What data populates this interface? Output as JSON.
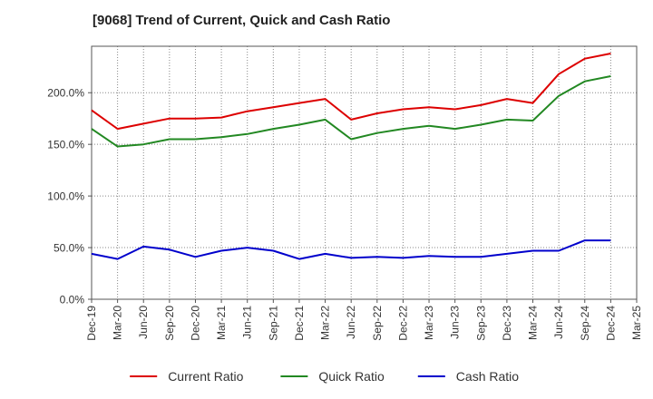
{
  "chart_data": {
    "type": "line",
    "title": "[9068]  Trend of Current, Quick and Cash Ratio",
    "xlabel": "",
    "ylabel": "",
    "ylim": [
      0,
      245
    ],
    "y_ticks": [
      0,
      50,
      100,
      150,
      200
    ],
    "y_tick_labels": [
      "0.0%",
      "50.0%",
      "100.0%",
      "150.0%",
      "200.0%"
    ],
    "x_tick_labels": [
      "Dec-19",
      "Mar-20",
      "Jun-20",
      "Sep-20",
      "Dec-20",
      "Mar-21",
      "Jun-21",
      "Sep-21",
      "Dec-21",
      "Mar-22",
      "Jun-22",
      "Sep-22",
      "Dec-22",
      "Mar-23",
      "Jun-23",
      "Sep-23",
      "Dec-23",
      "Mar-24",
      "Jun-24",
      "Sep-24",
      "Dec-24",
      "Mar-25"
    ],
    "categories": [
      "Dec-19",
      "Mar-20",
      "Jun-20",
      "Sep-20",
      "Dec-20",
      "Mar-21",
      "Jun-21",
      "Sep-21",
      "Dec-21",
      "Mar-22",
      "Jun-22",
      "Sep-22",
      "Dec-22",
      "Mar-23",
      "Jun-23",
      "Sep-23",
      "Dec-23",
      "Mar-24",
      "Jun-24",
      "Sep-24",
      "Dec-24"
    ],
    "grid": "vertical-dotted",
    "legend": "bottom",
    "series": [
      {
        "name": "Current Ratio",
        "color": "#dd0000",
        "values": [
          183,
          165,
          170,
          175,
          175,
          176,
          182,
          186,
          190,
          194,
          174,
          180,
          184,
          186,
          184,
          188,
          194,
          190,
          218,
          233,
          238
        ]
      },
      {
        "name": "Quick Ratio",
        "color": "#228822",
        "values": [
          165,
          148,
          150,
          155,
          155,
          157,
          160,
          165,
          169,
          174,
          155,
          161,
          165,
          168,
          165,
          169,
          174,
          173,
          197,
          211,
          216
        ]
      },
      {
        "name": "Cash Ratio",
        "color": "#0000cc",
        "values": [
          44,
          39,
          51,
          48,
          41,
          47,
          50,
          47,
          39,
          44,
          40,
          41,
          40,
          42,
          41,
          41,
          44,
          47,
          47,
          57,
          57
        ]
      }
    ]
  }
}
